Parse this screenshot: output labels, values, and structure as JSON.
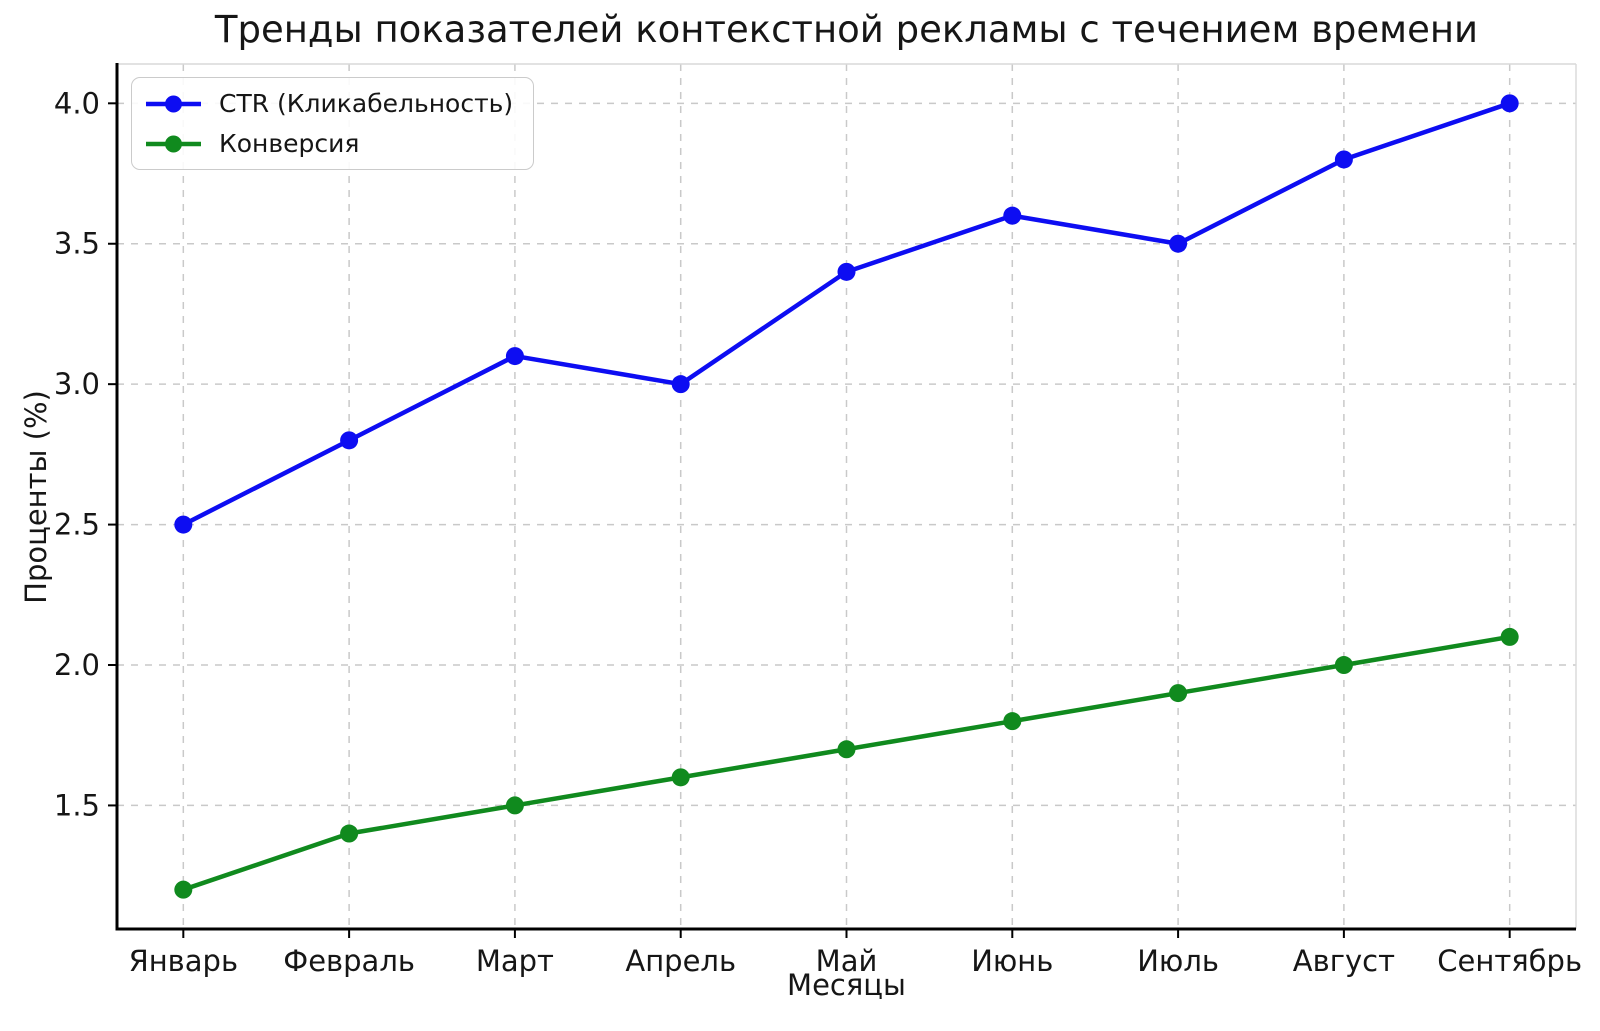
{
  "chart_data": {
    "type": "line",
    "title": "Тренды показателей контекстной рекламы с течением времени",
    "xlabel": "Месяцы",
    "ylabel": "Проценты (%)",
    "categories": [
      "Январь",
      "Февраль",
      "Март",
      "Апрель",
      "Май",
      "Июнь",
      "Июль",
      "Август",
      "Сентябрь"
    ],
    "series": [
      {
        "name": "CTR (Кликабельность)",
        "color": "#0d0df2",
        "values": [
          2.5,
          2.8,
          3.1,
          3.0,
          3.4,
          3.6,
          3.5,
          3.8,
          4.0
        ]
      },
      {
        "name": "Конверсия",
        "color": "#108a1e",
        "values": [
          1.2,
          1.4,
          1.5,
          1.6,
          1.7,
          1.8,
          1.9,
          2.0,
          2.1
        ]
      }
    ],
    "yticks": [
      1.5,
      2.0,
      2.5,
      3.0,
      3.5,
      4.0
    ],
    "ylim": [
      1.06,
      4.14
    ],
    "grid": true,
    "grid_style": "dashed",
    "legend_position": "upper left",
    "marker": "circle"
  },
  "colors": {
    "background": "#ffffff",
    "grid": "#c9c9c9",
    "spine_dark": "#000000",
    "spine_light": "#d9d9d9",
    "tick": "#000000",
    "text": "#161616",
    "legend_border": "#cbcbcb"
  }
}
